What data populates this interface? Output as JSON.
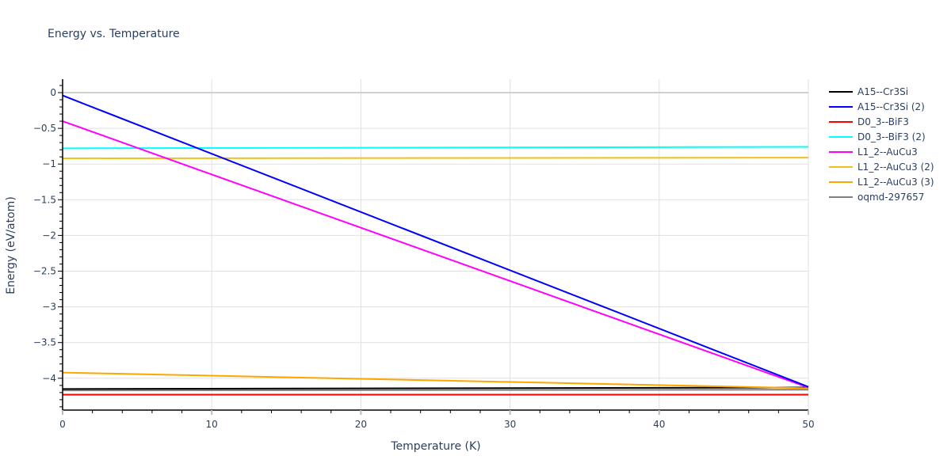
{
  "chart_data": {
    "type": "line",
    "title": "Energy vs. Temperature",
    "xlabel": "Temperature (K)",
    "ylabel": "Energy (eV/atom)",
    "xlim": [
      0,
      50
    ],
    "ylim": [
      -4.45,
      0.18
    ],
    "x_ticks": [
      0,
      10,
      20,
      30,
      40,
      50
    ],
    "y_ticks": [
      0,
      -0.5,
      -1,
      -1.5,
      -2,
      -2.5,
      -3,
      -3.5,
      -4
    ],
    "y_tick_labels": [
      "0",
      "−0.5",
      "−1",
      "−1.5",
      "−2",
      "−2.5",
      "−3",
      "−3.5",
      "−4"
    ],
    "grid": true,
    "legend_position": "right",
    "x": [
      0,
      50
    ],
    "series": [
      {
        "name": "A15--Cr3Si",
        "color": "#000000",
        "x": [
          0,
          50
        ],
        "values": [
          -4.15,
          -4.13
        ]
      },
      {
        "name": "A15--Cr3Si (2)",
        "color": "#0000ff",
        "x": [
          0,
          50
        ],
        "values": [
          -0.04,
          -4.12
        ]
      },
      {
        "name": "D0_3--BiF3",
        "color": "#ff0000",
        "x": [
          0,
          50
        ],
        "values": [
          -4.23,
          -4.23
        ]
      },
      {
        "name": "D0_3--BiF3 (2)",
        "color": "#00ffff",
        "x": [
          0,
          50
        ],
        "values": [
          -0.78,
          -0.76
        ]
      },
      {
        "name": "L1_2--AuCu3",
        "color": "#ff00ff",
        "x": [
          0,
          50
        ],
        "values": [
          -0.4,
          -4.13
        ]
      },
      {
        "name": "L1_2--AuCu3 (2)",
        "color": "#f0c020",
        "x": [
          0,
          50
        ],
        "values": [
          -0.92,
          -0.91
        ]
      },
      {
        "name": "L1_2--AuCu3 (3)",
        "color": "#ffa500",
        "x": [
          0,
          50
        ],
        "values": [
          -3.92,
          -4.14
        ]
      },
      {
        "name": "oqmd-297657",
        "color": "#808080",
        "x": [
          0,
          50
        ],
        "values": [
          -4.17,
          -4.16
        ]
      }
    ],
    "extra_lines": [
      {
        "name": "zero-reference",
        "color": "#d0d0d0",
        "x": [
          0,
          50
        ],
        "values": [
          0,
          0
        ]
      }
    ]
  }
}
